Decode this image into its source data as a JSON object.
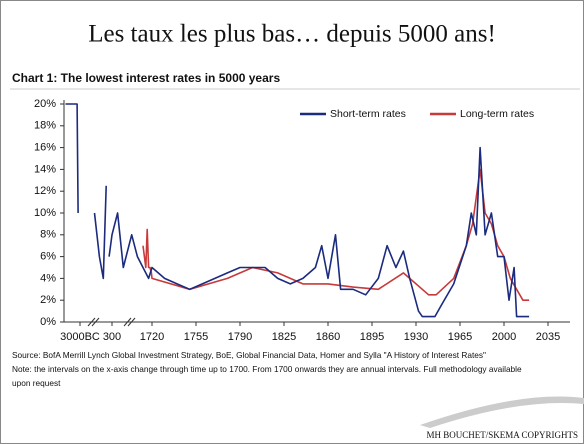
{
  "slide_title": "Les taux les plus bas… depuis 5000 ans!",
  "footer": "MH BOUCHET/SKEMA COPYRIGHTS",
  "chart_data": {
    "type": "line",
    "title": "Chart 1: The lowest interest rates in 5000 years",
    "source": "Source: BofA Merrill Lynch Global Investment Strategy, BoE, Global Financial Data, Homer and Sylla \"A History of Interest Rates\"",
    "note": "Note: the intervals on the x-axis change through time up to 1700. From 1700 onwards they are annual intervals. Full methodology available",
    "note_cont": "upon request",
    "legend": "top-right",
    "xlim": [
      -4500,
      2035
    ],
    "ylim": [
      0,
      20
    ],
    "xticks": [
      {
        "value": -3000,
        "label": "3000BC"
      },
      300,
      1720,
      1755,
      1790,
      1825,
      1860,
      1895,
      1930,
      1965,
      2000,
      2035
    ],
    "yticks": [
      {
        "value": 0,
        "label": "0%"
      },
      {
        "value": 2,
        "label": "2%"
      },
      {
        "value": 4,
        "label": "4%"
      },
      {
        "value": 6,
        "label": "6%"
      },
      {
        "value": 8,
        "label": "8%"
      },
      {
        "value": 10,
        "label": "10%"
      },
      {
        "value": 12,
        "label": "12%"
      },
      {
        "value": 14,
        "label": "14%"
      },
      {
        "value": 16,
        "label": "16%"
      },
      {
        "value": 18,
        "label": "18%"
      },
      {
        "value": 20,
        "label": "20%"
      }
    ],
    "series": [
      {
        "name": "Short-term rates",
        "color": "#1b2b7e",
        "x": [
          -4500,
          -3300,
          -3200,
          -2000,
          -1500,
          -1000,
          -600,
          -300,
          -100,
          0,
          300,
          500,
          700,
          1000,
          1200,
          1400,
          1600,
          1720,
          1730,
          1740,
          1750,
          1760,
          1770,
          1780,
          1790,
          1800,
          1810,
          1820,
          1830,
          1840,
          1850,
          1855,
          1860,
          1866,
          1870,
          1880,
          1890,
          1900,
          1907,
          1914,
          1920,
          1925,
          1932,
          1935,
          1945,
          1950,
          1960,
          1970,
          1974,
          1978,
          1981,
          1985,
          1990,
          1995,
          2000,
          2004,
          2008,
          2010,
          2020
        ],
        "values": [
          20,
          20,
          10,
          null,
          10,
          6,
          4,
          12.5,
          null,
          6,
          8,
          10,
          5,
          8,
          6,
          5,
          4,
          5,
          4,
          3.5,
          3,
          3.5,
          4,
          4.5,
          5,
          5,
          5,
          4,
          3.5,
          4,
          5,
          7,
          4,
          8,
          3,
          3,
          2.5,
          4,
          7,
          5,
          6.5,
          4,
          1,
          0.5,
          0.5,
          1.5,
          3.5,
          7,
          10,
          8,
          16,
          8,
          10,
          6,
          6,
          2,
          5,
          0.5,
          0.5
        ]
      },
      {
        "name": "Long-term rates",
        "color": "#c83a3a",
        "x": [
          1400,
          1500,
          1550,
          1600,
          1650,
          1700,
          1720,
          1750,
          1780,
          1800,
          1820,
          1840,
          1860,
          1880,
          1900,
          1920,
          1940,
          1946,
          1960,
          1970,
          1975,
          1981,
          1985,
          1990,
          1995,
          2000,
          2005,
          2010,
          2015,
          2020
        ],
        "values": [
          7,
          5,
          8.5,
          5,
          5,
          4.5,
          4,
          3,
          4,
          5,
          4.5,
          3.5,
          3.5,
          3.2,
          3,
          4.5,
          2.5,
          2.5,
          4,
          7,
          9,
          14,
          10,
          9,
          7,
          6,
          4,
          3,
          2,
          2
        ]
      }
    ]
  }
}
